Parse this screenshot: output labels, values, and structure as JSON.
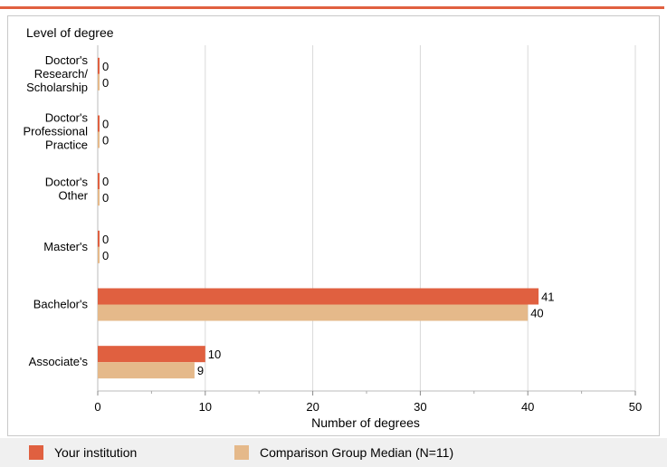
{
  "chart_data": {
    "type": "bar",
    "orientation": "horizontal",
    "title": "Level of degree",
    "xlabel": "Number of degrees",
    "ylabel": "",
    "xlim": [
      0,
      50
    ],
    "xticks": [
      "0",
      "10",
      "20",
      "30",
      "40",
      "50"
    ],
    "categories": [
      [
        "Doctor's",
        "Research/",
        "Scholarship"
      ],
      [
        "Doctor's",
        "Professional",
        "Practice"
      ],
      [
        "Doctor's",
        "Other"
      ],
      [
        "Master's"
      ],
      [
        "Bachelor's"
      ],
      [
        "Associate's"
      ]
    ],
    "series": [
      {
        "name": "Your institution",
        "color": "#e06040",
        "values": [
          0,
          0,
          0,
          0,
          41,
          10
        ]
      },
      {
        "name": "Comparison Group Median (N=11)",
        "color": "#e5b98a",
        "values": [
          0,
          0,
          0,
          0,
          40,
          9
        ]
      }
    ],
    "grid": true,
    "legend": "bottom"
  },
  "colors": {
    "accent": "#e06040",
    "comparison": "#e5b98a",
    "grid": "#d9d9d9"
  }
}
